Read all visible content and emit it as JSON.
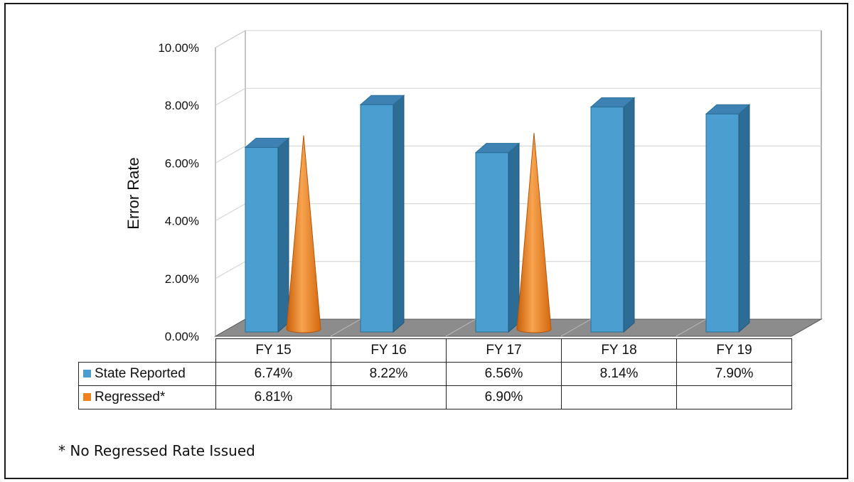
{
  "chart_data": {
    "type": "bar",
    "ylabel": "Error Rate",
    "ylim": [
      0,
      10
    ],
    "yticks": [
      "0.00%",
      "2.00%",
      "4.00%",
      "6.00%",
      "8.00%",
      "10.00%"
    ],
    "categories": [
      "FY 15",
      "FY 16",
      "FY 17",
      "FY 18",
      "FY 19"
    ],
    "series": [
      {
        "name": "State Reported",
        "shape": "box",
        "color": "#4a9fd0",
        "values": [
          6.74,
          8.22,
          6.56,
          8.14,
          7.9
        ],
        "labels": [
          "6.74%",
          "8.22%",
          "6.56%",
          "8.14%",
          "7.90%"
        ]
      },
      {
        "name": "Regressed*",
        "shape": "cone",
        "color": "#f0821e",
        "values": [
          6.81,
          null,
          6.9,
          null,
          null
        ],
        "labels": [
          "6.81%",
          "",
          "6.90%",
          "",
          ""
        ]
      }
    ],
    "grid": true,
    "legend": "data-table"
  },
  "footnote": "* No Regressed Rate Issued"
}
